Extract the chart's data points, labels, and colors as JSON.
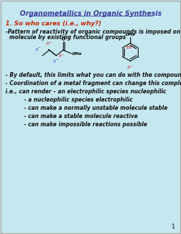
{
  "title": "Organometallics in Organic Synthesis",
  "title_color": "#3B3B9E",
  "bg_color": "#C5E8F0",
  "section1": "1. So who cares (i.e., why?)",
  "section1_color": "#CC2200",
  "bullet1a": "-Pattern of reactivity of organic compounds is imposed on",
  "bullet1b": "  molecule by existing functional groups",
  "bullet2": "- By default, this limits what you can do with the compound",
  "bullet3": "- Coordination of a metal fragment can change this completely",
  "bullet4": "i.e., can render – an electrophilic species nucleophilic",
  "bullet5": "- a nucleophilic species electrophilic",
  "bullet6": "- can make a normally unstable molecule stable",
  "bullet7": "- can make a stable molecule reactive",
  "bullet8": "- can make impossible reactions possible",
  "page_num": "1",
  "text_color": "#111111",
  "delta_minus_color": "#3333CC",
  "delta_plus_color": "#CC0000"
}
